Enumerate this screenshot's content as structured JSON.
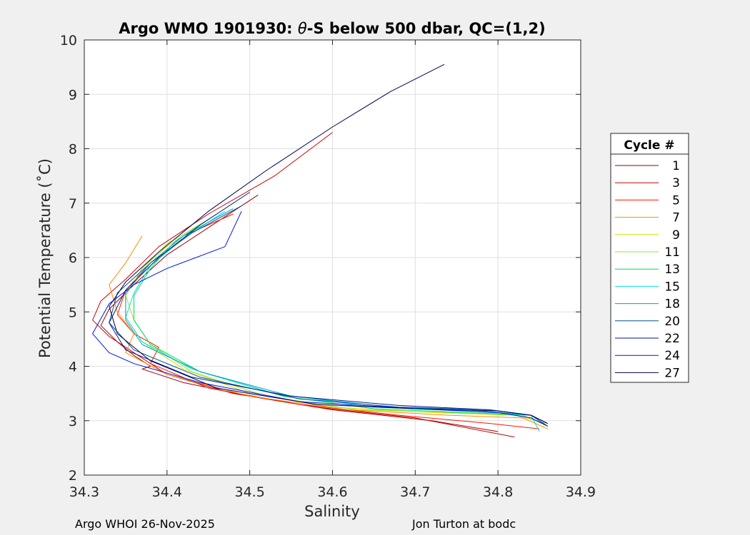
{
  "footer": {
    "left": "Argo WHOI 26-Nov-2025",
    "right": "Jon Turton at bodc"
  },
  "chart_data": {
    "type": "line",
    "title_prefix": "Argo WMO 1901930: ",
    "title_theta": "θ",
    "title_suffix": "-S below 500 dbar,  QC=(1,2)",
    "xlabel": "Salinity",
    "ylabel": "Potential Temperature (˚C)",
    "xlim": [
      34.3,
      34.9
    ],
    "ylim": [
      2,
      10
    ],
    "xticks": [
      "34.3",
      "34.4",
      "34.5",
      "34.6",
      "34.7",
      "34.8",
      "34.9"
    ],
    "yticks": [
      "2",
      "3",
      "4",
      "5",
      "6",
      "7",
      "8",
      "9",
      "10"
    ],
    "grid": true,
    "legend_title": "Cycle #",
    "legend_position": "right",
    "series": [
      {
        "name": "1",
        "color": "#9b0000",
        "x": [
          34.51,
          34.45,
          34.4,
          34.36,
          34.33,
          34.32,
          34.34,
          34.36,
          34.38,
          34.37,
          34.42,
          34.5,
          34.6,
          34.72,
          34.8
        ],
        "y": [
          7.15,
          6.55,
          6.05,
          5.5,
          5.05,
          4.75,
          4.45,
          4.2,
          4.0,
          3.95,
          3.7,
          3.45,
          3.2,
          3.0,
          2.8
        ]
      },
      {
        "name": "3",
        "color": "#c80000",
        "x": [
          34.6,
          34.53,
          34.45,
          34.39,
          34.35,
          34.32,
          34.31,
          34.33,
          34.36,
          34.4,
          34.48,
          34.58,
          34.7,
          34.82
        ],
        "y": [
          8.3,
          7.5,
          6.8,
          6.2,
          5.6,
          5.2,
          4.85,
          4.55,
          4.25,
          3.85,
          3.5,
          3.25,
          3.05,
          2.7
        ]
      },
      {
        "name": "5",
        "color": "#ff1400",
        "x": [
          34.48,
          34.42,
          34.38,
          34.35,
          34.34,
          34.36,
          34.39,
          34.38,
          34.45,
          34.56,
          34.68,
          34.79,
          34.85
        ],
        "y": [
          6.8,
          6.4,
          5.9,
          5.4,
          4.95,
          4.6,
          4.35,
          4.05,
          3.6,
          3.3,
          3.1,
          2.95,
          2.85
        ]
      },
      {
        "name": "7",
        "color": "#ff8c00",
        "x": [
          34.37,
          34.35,
          34.33,
          34.34,
          34.36,
          34.35,
          34.4,
          34.5,
          34.62,
          34.74,
          34.83,
          34.86
        ],
        "y": [
          6.4,
          5.9,
          5.5,
          5.0,
          4.6,
          4.25,
          3.85,
          3.45,
          3.2,
          3.1,
          3.05,
          2.85
        ]
      },
      {
        "name": "9",
        "color": "#dcdc00",
        "x": [
          34.44,
          34.4,
          34.37,
          34.35,
          34.35,
          34.37,
          34.42,
          34.5,
          34.6,
          34.72,
          34.82,
          34.86
        ],
        "y": [
          6.6,
          6.2,
          5.8,
          5.3,
          4.9,
          4.45,
          3.95,
          3.5,
          3.25,
          3.15,
          3.1,
          2.95
        ]
      },
      {
        "name": "11",
        "color": "#96e632",
        "x": [
          34.45,
          34.4,
          34.37,
          34.35,
          34.36,
          34.38,
          34.43,
          34.52,
          34.63,
          34.74,
          34.83,
          34.86
        ],
        "y": [
          6.7,
          6.25,
          5.8,
          5.3,
          4.85,
          4.4,
          3.9,
          3.45,
          3.2,
          3.15,
          3.1,
          2.9
        ]
      },
      {
        "name": "13",
        "color": "#00dc5a",
        "x": [
          34.46,
          34.41,
          34.38,
          34.36,
          34.36,
          34.38,
          34.44,
          34.54,
          34.65,
          34.76,
          34.84,
          34.86
        ],
        "y": [
          6.8,
          6.3,
          5.8,
          5.3,
          4.85,
          4.4,
          3.9,
          3.45,
          3.22,
          3.15,
          3.1,
          2.9
        ]
      },
      {
        "name": "15",
        "color": "#00dcdc",
        "x": [
          34.47,
          34.42,
          34.38,
          34.36,
          34.35,
          34.37,
          34.43,
          34.53,
          34.65,
          34.76,
          34.84,
          34.85
        ],
        "y": [
          6.85,
          6.35,
          5.85,
          5.35,
          4.9,
          4.45,
          3.95,
          3.5,
          3.25,
          3.18,
          3.1,
          2.8
        ]
      },
      {
        "name": "18",
        "color": "#00a0c8",
        "x": [
          34.48,
          34.42,
          34.38,
          34.35,
          34.35,
          34.37,
          34.44,
          34.55,
          34.67,
          34.78,
          34.84,
          34.86
        ],
        "y": [
          6.9,
          6.4,
          5.9,
          5.35,
          4.85,
          4.4,
          3.9,
          3.45,
          3.25,
          3.18,
          3.1,
          2.9
        ]
      },
      {
        "name": "20",
        "color": "#005096",
        "x": [
          34.49,
          34.43,
          34.38,
          34.34,
          34.33,
          34.36,
          34.44,
          34.56,
          34.68,
          34.79,
          34.84,
          34.86
        ],
        "y": [
          6.95,
          6.45,
          5.9,
          5.35,
          4.8,
          4.3,
          3.8,
          3.4,
          3.25,
          3.2,
          3.1,
          2.9
        ]
      },
      {
        "name": "22",
        "color": "#001e8c",
        "x": [
          34.5,
          34.44,
          34.39,
          34.35,
          34.33,
          34.35,
          34.43,
          34.55,
          34.68,
          34.79,
          34.84,
          34.86
        ],
        "y": [
          7.2,
          6.6,
          6.0,
          5.4,
          4.8,
          4.3,
          3.8,
          3.45,
          3.28,
          3.2,
          3.1,
          2.95
        ]
      },
      {
        "name": "24",
        "color": "#0014e6",
        "x": [
          34.49,
          34.47,
          34.4,
          34.36,
          34.33,
          34.31,
          34.33,
          34.36,
          34.44,
          34.56,
          34.7,
          34.8,
          34.84,
          34.86
        ],
        "y": [
          6.85,
          6.2,
          5.8,
          5.5,
          5.15,
          4.6,
          4.25,
          4.05,
          3.7,
          3.35,
          3.22,
          3.15,
          3.05,
          2.9
        ]
      },
      {
        "name": "27",
        "color": "#000050",
        "x": [
          34.735,
          34.67,
          34.6,
          34.52,
          34.45,
          34.39,
          34.35,
          34.33,
          34.34,
          34.38,
          34.46,
          34.58,
          34.7,
          34.8,
          34.84,
          34.86
        ],
        "y": [
          9.55,
          9.05,
          8.4,
          7.6,
          6.85,
          6.1,
          5.55,
          5.1,
          4.6,
          4.1,
          3.6,
          3.3,
          3.22,
          3.18,
          3.1,
          2.95
        ]
      }
    ]
  }
}
